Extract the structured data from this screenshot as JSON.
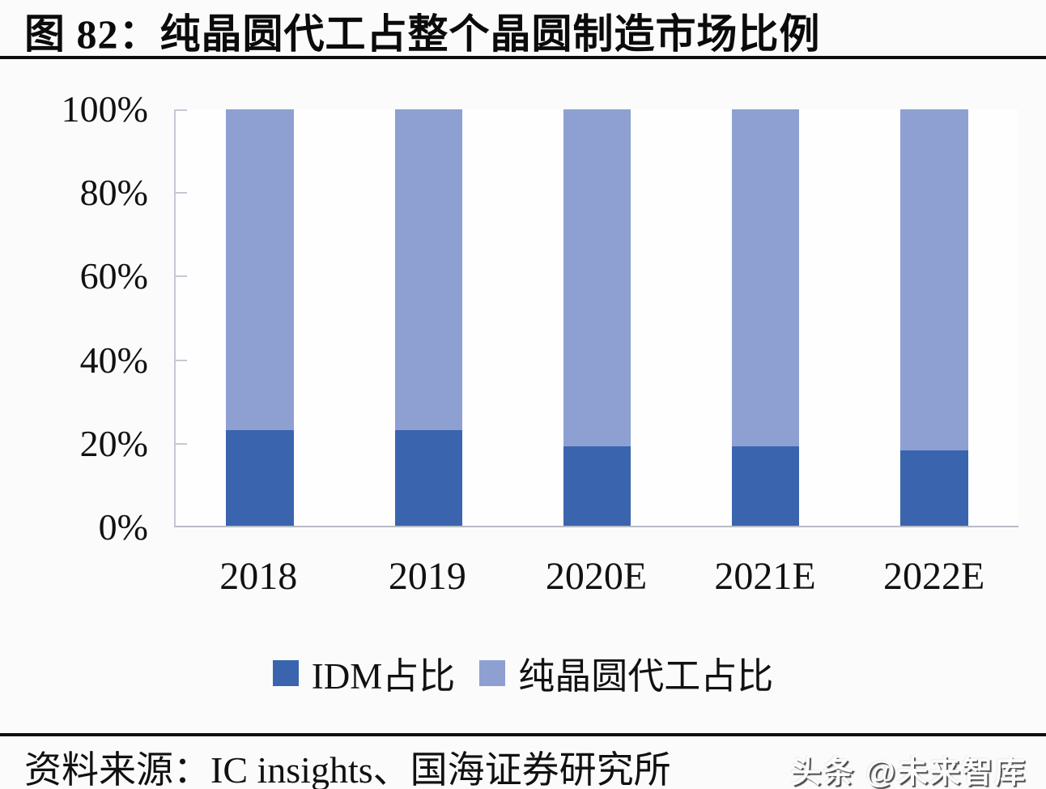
{
  "header": {
    "title": "图 82：纯晶圆代工占整个晶圆制造市场比例"
  },
  "chart_data": {
    "type": "bar",
    "stacked": true,
    "title": "图 82：纯晶圆代工占整个晶圆制造市场比例",
    "categories": [
      "2018",
      "2019",
      "2020E",
      "2021E",
      "2022E"
    ],
    "series": [
      {
        "name": "IDM占比",
        "color": "#3A64AE",
        "values": [
          23,
          23,
          19,
          19,
          18
        ]
      },
      {
        "name": "纯晶圆代工占比",
        "color": "#8EA0D2",
        "values": [
          77,
          77,
          81,
          81,
          82
        ]
      }
    ],
    "xlabel": "",
    "ylabel": "",
    "ylim": [
      0,
      100
    ],
    "yticks": [
      "0%",
      "20%",
      "40%",
      "60%",
      "80%",
      "100%"
    ],
    "grid": false,
    "legend_position": "bottom",
    "axis_color": "#c5c9d3"
  },
  "footer": {
    "source": "资料来源：IC insights、国海证券研究所",
    "watermark": "头条 @未来智库"
  }
}
